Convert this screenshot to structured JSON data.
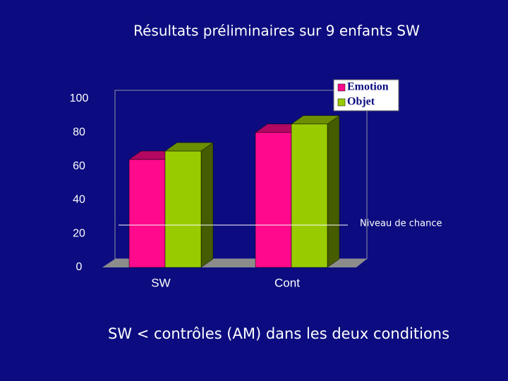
{
  "chart_data": {
    "type": "bar3d",
    "title": "Résultats préliminaires sur 9 enfants SW",
    "categories": [
      "SW",
      "Cont"
    ],
    "series": [
      {
        "name": "Emotion",
        "color": "#ff0a8c",
        "values": [
          64,
          80
        ]
      },
      {
        "name": "Objet",
        "color": "#99cc00",
        "values": [
          69,
          85
        ]
      }
    ],
    "ylim": [
      0,
      100
    ],
    "yticks": [
      0,
      20,
      40,
      60,
      80,
      100
    ],
    "reference_line": {
      "label": "Niveau de chance",
      "value": 23
    },
    "legend": "top-right"
  },
  "footer": "SW < contrôles (AM) dans les deux conditions"
}
